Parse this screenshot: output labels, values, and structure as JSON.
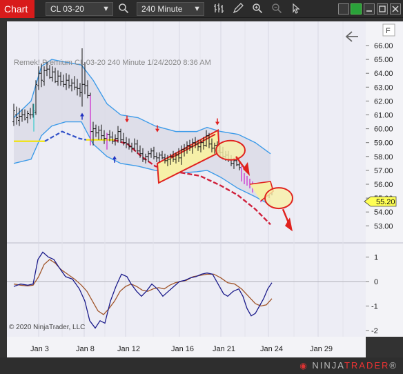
{
  "toolbar": {
    "chart_tab": "Chart",
    "instrument": "CL 03-20",
    "interval": "240 Minute"
  },
  "chart": {
    "header_text": "Remek!  Premium  CL 03-20  240 Minute  1/24/2020 8:36 AM",
    "copyright": "© 2020 NinjaTrader, LLC",
    "panel_flag": "F",
    "current_price_label": "55.20",
    "price_ticks": [
      "66.00",
      "65.00",
      "64.00",
      "63.00",
      "62.00",
      "61.00",
      "60.00",
      "59.00",
      "58.00",
      "57.00",
      "56.00",
      "55.00",
      "54.00",
      "53.00"
    ],
    "osc_ticks": [
      "1",
      "0",
      "-1",
      "-2"
    ],
    "date_ticks": [
      "Jan 3",
      "Jan 8",
      "Jan 12",
      "Jan 16",
      "Jan 21",
      "Jan 24",
      "Jan 29"
    ]
  },
  "footer": {
    "brand_ninja": "NINJA",
    "brand_trader": "TRADER",
    "brand_suffix": "®"
  },
  "colors": {
    "background": "#ededf5",
    "band": "#3d9be9",
    "midline_blue": "#3050c8",
    "midline_red": "#d0203b",
    "channel": "#e0221e",
    "highlight": "#f6f0a8",
    "osc_fast": "#1a1a8a",
    "osc_slow": "#a0552a",
    "price_tag": "#ffff55"
  },
  "chart_data": {
    "type": "candlestick",
    "x_ticks": [
      "Jan 3",
      "Jan 8",
      "Jan 12",
      "Jan 16",
      "Jan 21",
      "Jan 24",
      "Jan 29"
    ],
    "price_range": [
      52.5,
      66.6
    ],
    "last_price": 55.2,
    "oscillator_range": [
      -2.2,
      1.6
    ]
  }
}
